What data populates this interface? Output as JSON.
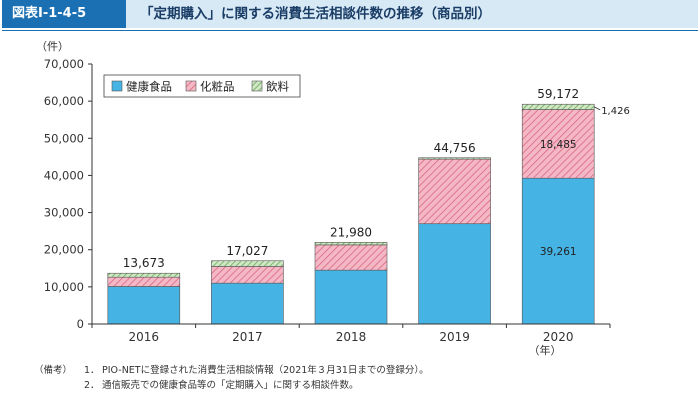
{
  "header": {
    "label": "図表Ⅰ-1-4-5",
    "title": "「定期購入」に関する消費生活相談件数の推移（商品別）"
  },
  "colors": {
    "health": "#45b3e3",
    "cosmetics_fill": "#f4b7c6",
    "cosmetics_hatch": "#d9687f",
    "drinks_fill": "#cfe7c4",
    "drinks_hatch": "#5fa04e",
    "axis": "#333333",
    "header_blue": "#1b6fb3"
  },
  "chart_data": {
    "type": "bar",
    "stacked": true,
    "categories": [
      "2016",
      "2017",
      "2018",
      "2019",
      "2020"
    ],
    "series": [
      {
        "name": "健康食品",
        "values": [
          10100,
          11000,
          14500,
          27000,
          39261
        ]
      },
      {
        "name": "化粧品",
        "values": [
          2500,
          4500,
          6800,
          17400,
          18485
        ]
      },
      {
        "name": "飲料",
        "values": [
          1073,
          1527,
          680,
          356,
          1426
        ]
      }
    ],
    "totals": [
      "13,673",
      "17,027",
      "21,980",
      "44,756",
      "59,172"
    ],
    "segment_labels": [
      {
        "category": "2020",
        "series": "健康食品",
        "text": "39,261"
      },
      {
        "category": "2020",
        "series": "化粧品",
        "text": "18,485"
      },
      {
        "category": "2020",
        "series": "飲料",
        "text": "1,426"
      }
    ],
    "yunit": "（件）",
    "xunit": "（年）",
    "ylim": [
      0,
      70000
    ],
    "yticks": [
      0,
      10000,
      20000,
      30000,
      40000,
      50000,
      60000,
      70000
    ],
    "ytick_labels": [
      "0",
      "10,000",
      "20,000",
      "30,000",
      "40,000",
      "50,000",
      "60,000",
      "70,000"
    ],
    "grid": false,
    "legend_position": "top-left"
  },
  "notes": {
    "tag": "（備考）",
    "items": [
      {
        "num": "1．",
        "text": "PIO-NETに登録された消費生活相談情報（2021年３月31日までの登録分）。"
      },
      {
        "num": "2．",
        "text": "通信販売での健康食品等の「定期購入」に関する相談件数。"
      }
    ]
  }
}
